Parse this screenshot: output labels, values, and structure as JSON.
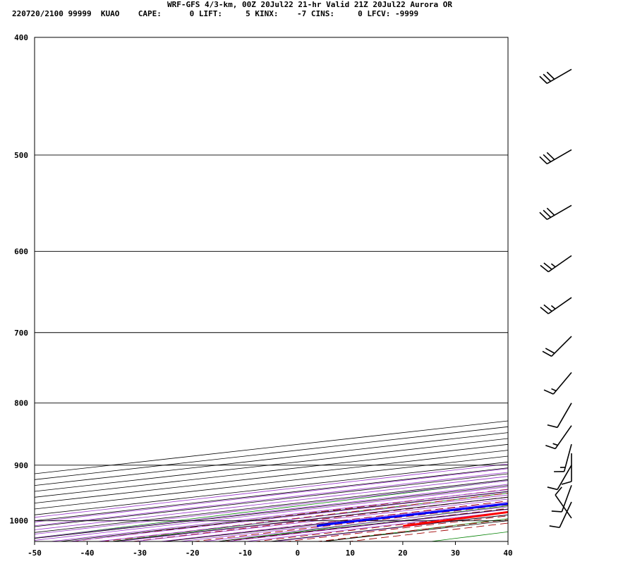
{
  "header": {
    "title": "WRF-GFS 4/3-km, 00Z 20Jul22 21-hr Valid 21Z 20Jul22 Aurora OR",
    "info_line": "220720/2100 99999  KUAO    CAPE:      0 LIFT:     5 KINX:    -7 CINS:     0 LFCV: -9999"
  },
  "chart_data": {
    "type": "line",
    "x_axis": {
      "ticks": [
        -50,
        -40,
        -30,
        -20,
        -10,
        0,
        10,
        20,
        30,
        40
      ],
      "range": [
        -50,
        40
      ],
      "units": "C"
    },
    "y_axis": {
      "ticks": [
        400,
        500,
        600,
        700,
        800,
        900,
        1000
      ],
      "range": [
        400,
        1040
      ],
      "scale": "log"
    },
    "grid": true,
    "temperature": {
      "color": "#ff0000",
      "points": [
        {
          "p": 1010,
          "t": 29.0
        },
        {
          "p": 1000,
          "t": 27.5
        },
        {
          "p": 975,
          "t": 24.0
        },
        {
          "p": 950,
          "t": 21.8
        },
        {
          "p": 925,
          "t": 20.2
        },
        {
          "p": 900,
          "t": 19.0
        },
        {
          "p": 875,
          "t": 18.2
        },
        {
          "p": 850,
          "t": 17.8
        },
        {
          "p": 825,
          "t": 17.3
        },
        {
          "p": 800,
          "t": 16.5
        },
        {
          "p": 775,
          "t": 14.8
        },
        {
          "p": 750,
          "t": 12.9
        },
        {
          "p": 725,
          "t": 10.9
        },
        {
          "p": 700,
          "t": 9.0
        },
        {
          "p": 650,
          "t": 5.2
        },
        {
          "p": 600,
          "t": 1.2
        },
        {
          "p": 550,
          "t": -3.6
        },
        {
          "p": 500,
          "t": -9.0
        },
        {
          "p": 450,
          "t": -14.0
        },
        {
          "p": 425,
          "t": -18.3
        }
      ]
    },
    "dewpoint": {
      "color": "#0000ff",
      "points": [
        {
          "p": 1010,
          "td": 12.6
        },
        {
          "p": 1005,
          "td": 11.6
        },
        {
          "p": 1000,
          "td": 11.4
        },
        {
          "p": 950,
          "td": 10.8
        },
        {
          "p": 900,
          "td": 9.8
        },
        {
          "p": 885,
          "td": 6.5
        },
        {
          "p": 865,
          "td": -1.0
        },
        {
          "p": 835,
          "td": -11.0
        },
        {
          "p": 805,
          "td": -17.6
        },
        {
          "p": 780,
          "td": -18.2
        },
        {
          "p": 740,
          "td": -17.2
        },
        {
          "p": 700,
          "td": -18.0
        },
        {
          "p": 650,
          "td": -22.2
        },
        {
          "p": 550,
          "td": -35.5
        },
        {
          "p": 500,
          "td": -38.2
        },
        {
          "p": 480,
          "td": -40.0
        },
        {
          "p": 450,
          "td": -40.4
        },
        {
          "p": 425,
          "td": -40.7
        }
      ]
    },
    "wind_barbs": [
      {
        "p": 425,
        "dir": 240,
        "spd": 30
      },
      {
        "p": 495,
        "dir": 240,
        "spd": 30
      },
      {
        "p": 550,
        "dir": 240,
        "spd": 30
      },
      {
        "p": 605,
        "dir": 235,
        "spd": 25
      },
      {
        "p": 655,
        "dir": 235,
        "spd": 25
      },
      {
        "p": 705,
        "dir": 225,
        "spd": 20
      },
      {
        "p": 755,
        "dir": 220,
        "spd": 15
      },
      {
        "p": 800,
        "dir": 210,
        "spd": 10
      },
      {
        "p": 835,
        "dir": 215,
        "spd": 15
      },
      {
        "p": 865,
        "dir": 195,
        "spd": 15
      },
      {
        "p": 880,
        "dir": 180,
        "spd": 10
      },
      {
        "p": 900,
        "dir": 210,
        "spd": 10
      },
      {
        "p": 935,
        "dir": 200,
        "spd": 10
      },
      {
        "p": 965,
        "dir": 205,
        "spd": 10
      },
      {
        "p": 995,
        "dir": 325,
        "spd": 10
      }
    ],
    "colors": {
      "isotherm": "#000000",
      "dry_adiabat": "#008000",
      "moist_adiabat": "#a00000",
      "mixing_ratio": "#9933cc"
    }
  }
}
